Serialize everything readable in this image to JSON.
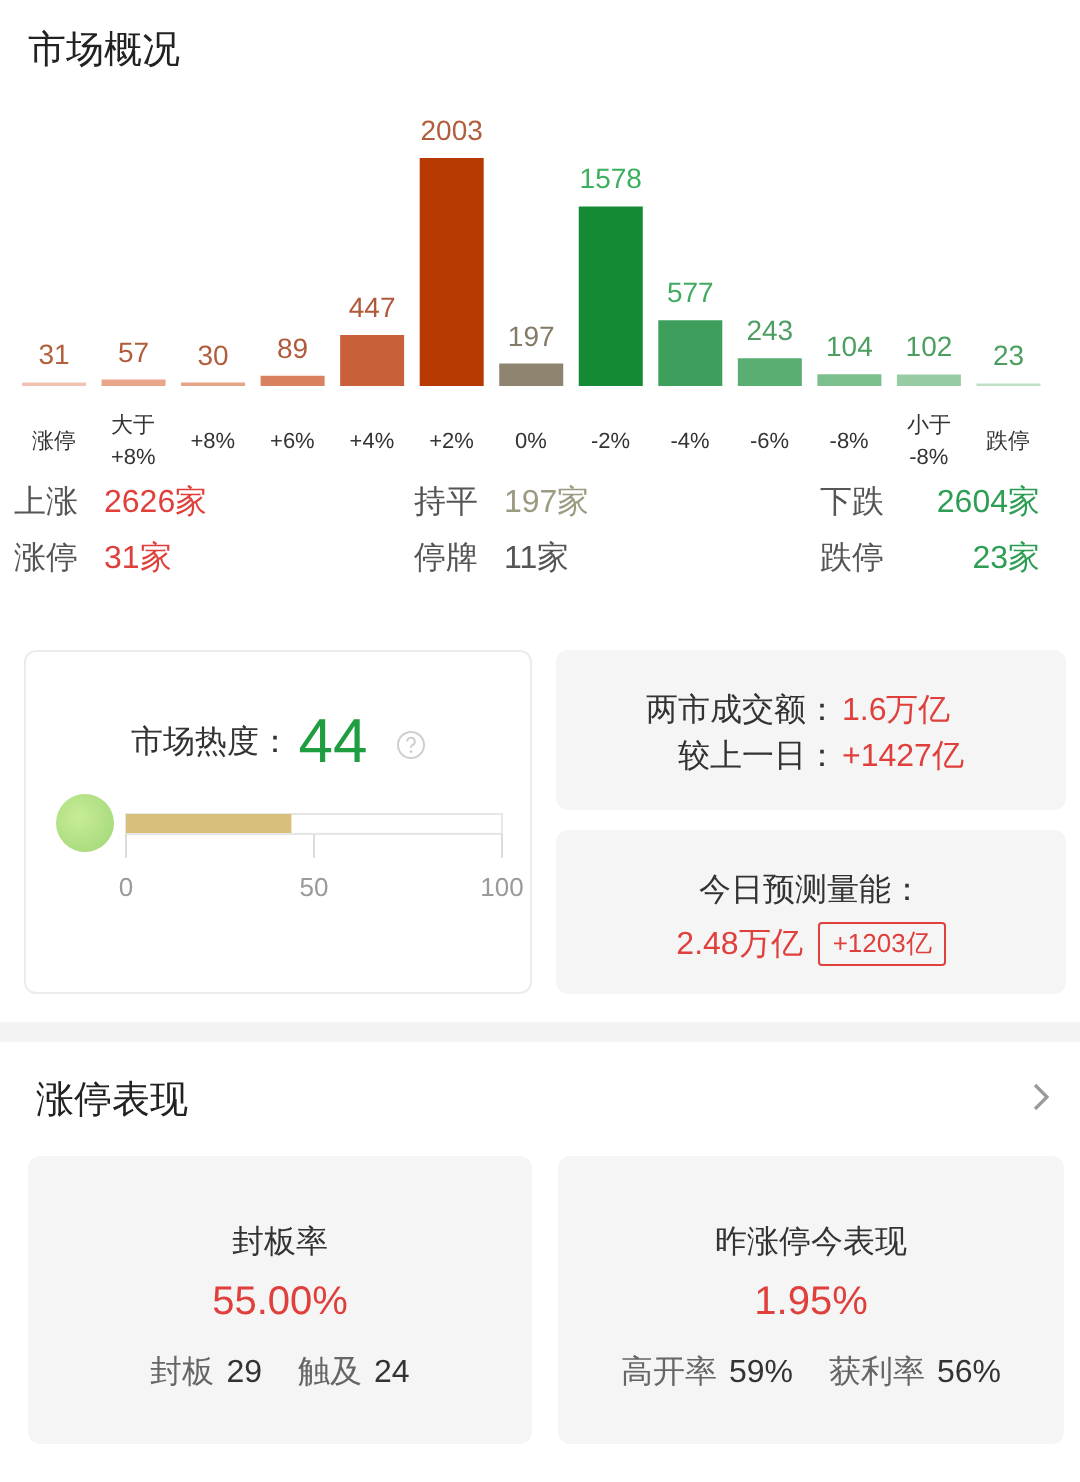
{
  "chart_data": [
    {
      "type": "bar",
      "title": "市场概况",
      "categories": [
        "涨停",
        "大于+8%",
        "+8%",
        "+6%",
        "+4%",
        "+2%",
        "0%",
        "-2%",
        "-4%",
        "-6%",
        "-8%",
        "小于-8%",
        "跌停"
      ],
      "values": [
        31,
        57,
        30,
        89,
        447,
        2003,
        197,
        1578,
        577,
        243,
        104,
        102,
        23
      ],
      "colors": [
        "#f0c4b0",
        "#e8a58a",
        "#e6a487",
        "#d98060",
        "#c8613a",
        "#b83a02",
        "#8e8470",
        "#148a35",
        "#3e9e5c",
        "#5aae72",
        "#7bbf8c",
        "#96cca3",
        "#bfe0c6"
      ],
      "data_labels": true,
      "tick_labels": "x",
      "annotations": [
        "上涨",
        "2626家",
        "持平",
        "197家",
        "下跌",
        "2604家",
        "涨停",
        "31家",
        "停牌",
        "11家",
        "跌停",
        "23家"
      ]
    },
    {
      "type": "bar",
      "orientation": "horizontal",
      "title": "市场热度：44",
      "categories": [
        null
      ],
      "values": [
        44
      ],
      "color": "#d8c07a",
      "xlim": [
        0,
        100
      ],
      "xticks": [
        0,
        50,
        100
      ],
      "tick_labels": "x"
    },
    {
      "type": "other",
      "annotations": [
        "两市成交额：",
        "1.6万亿",
        "较上一日：",
        "+1427亿"
      ]
    },
    {
      "type": "other",
      "title": "今日预测量能：",
      "annotations": [
        "2.48万亿",
        "+1203亿"
      ]
    },
    {
      "type": "other",
      "title": "涨停表现"
    },
    {
      "type": "other",
      "title": "封板率",
      "annotations": [
        "55.00%",
        "封板",
        "29",
        "触及",
        "24"
      ]
    },
    {
      "type": "other",
      "title": "昨涨停今表现",
      "annotations": [
        "1.95%",
        "高开率",
        "59%",
        "获利率",
        "56%"
      ]
    }
  ]
}
